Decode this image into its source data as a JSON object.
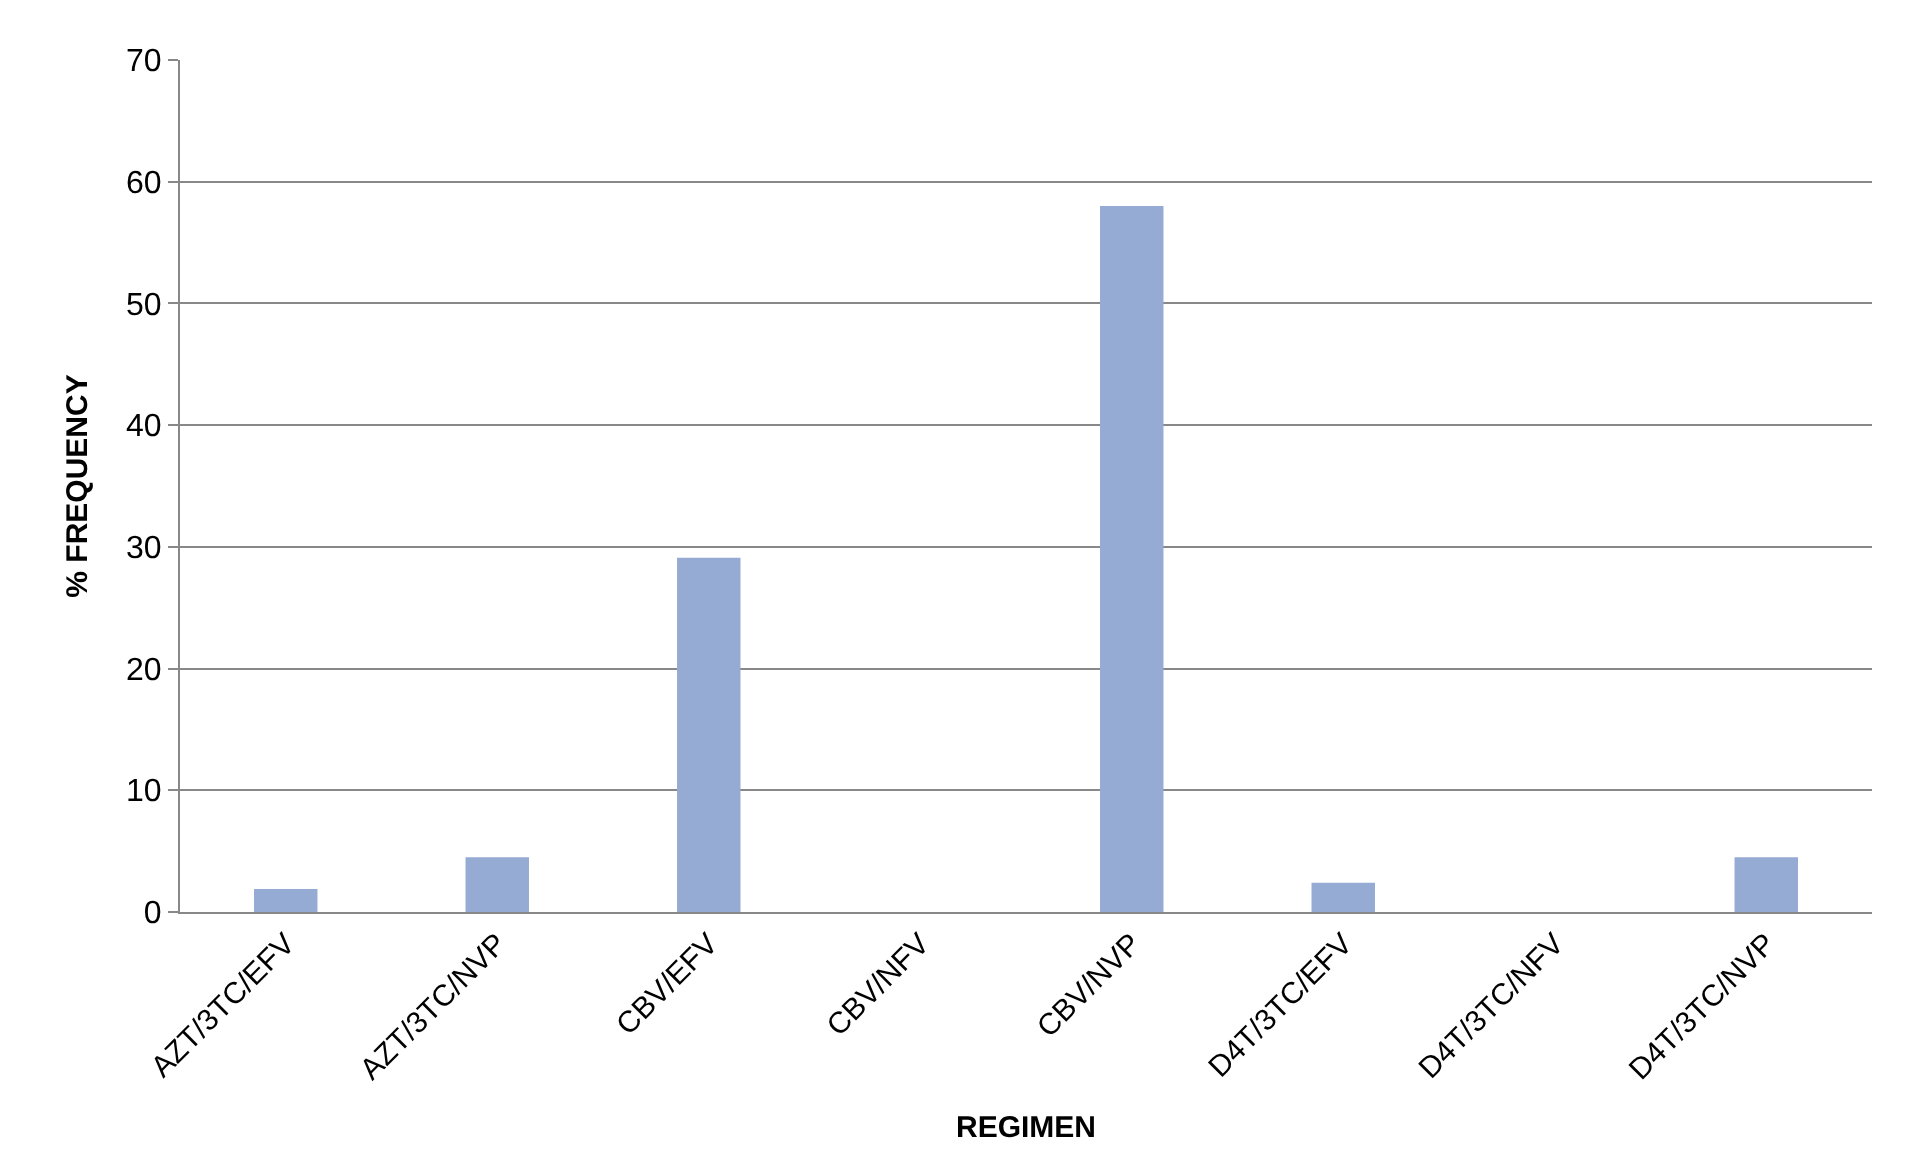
{
  "chart_data": {
    "type": "bar",
    "xlabel": "REGIMEN",
    "ylabel": "% FREQUENCY",
    "categories": [
      "AZT/3TC/EFV",
      "AZT/3TC/NVP",
      "CBV/EFV",
      "CBV/NFV",
      "CBV/NVP",
      "D4T/3TC/EFV",
      "D4T/3TC/NFV",
      "D4T/3TC/NVP"
    ],
    "values": [
      1.9,
      4.5,
      29.1,
      0,
      58,
      2.4,
      0,
      4.5
    ],
    "color": "#95abd4",
    "ylim": [
      0,
      70
    ],
    "yticks": [
      0,
      10,
      20,
      30,
      40,
      50,
      60,
      70
    ],
    "grid": "y"
  }
}
